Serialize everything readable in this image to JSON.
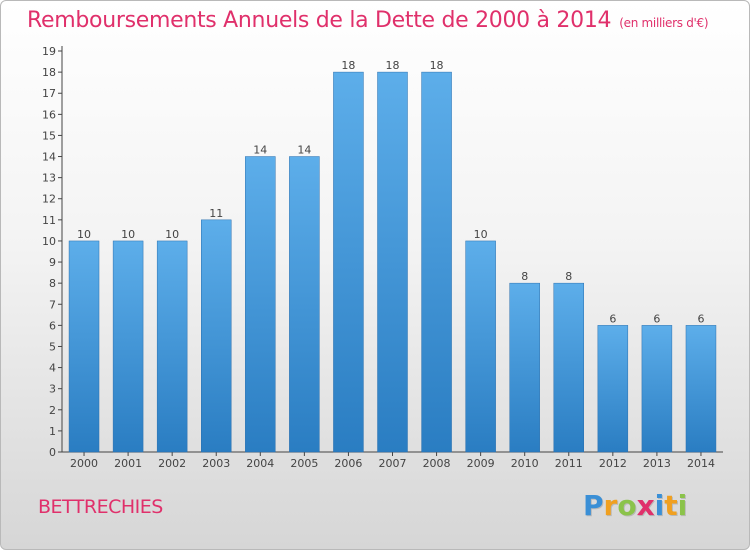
{
  "title": "Remboursements Annuels de la Dette de 2000 à 2014",
  "subtitle": "(en milliers d'€)",
  "town": "BETTRECHIES",
  "logo": {
    "text": "Proxiti",
    "letter_colors": [
      "#3a8fd6",
      "#f0a020",
      "#8bc34a",
      "#e0306b",
      "#3a8fd6",
      "#f0a020",
      "#8bc34a"
    ]
  },
  "colors": {
    "title": "#e0306b",
    "bar_top": "#5daeea",
    "bar_bottom": "#2a7dc2",
    "axis": "#444444"
  },
  "chart_data": {
    "type": "bar",
    "categories": [
      "2000",
      "2001",
      "2002",
      "2003",
      "2004",
      "2005",
      "2006",
      "2007",
      "2008",
      "2009",
      "2010",
      "2011",
      "2012",
      "2013",
      "2014"
    ],
    "values": [
      10,
      10,
      10,
      11,
      14,
      14,
      18,
      18,
      18,
      10,
      8,
      8,
      6,
      6,
      6
    ],
    "data_labels": [
      "10",
      "10",
      "10",
      "11",
      "14",
      "14",
      "18",
      "18",
      "18",
      "10",
      "8",
      "8",
      "6",
      "6",
      "6"
    ],
    "yticks": [
      "0",
      "1",
      "2",
      "3",
      "4",
      "5",
      "6",
      "7",
      "8",
      "9",
      "10",
      "11",
      "12",
      "13",
      "14",
      "15",
      "16",
      "17",
      "18",
      "19"
    ],
    "ylim": [
      0,
      19
    ],
    "grid": false,
    "legend": "none"
  }
}
